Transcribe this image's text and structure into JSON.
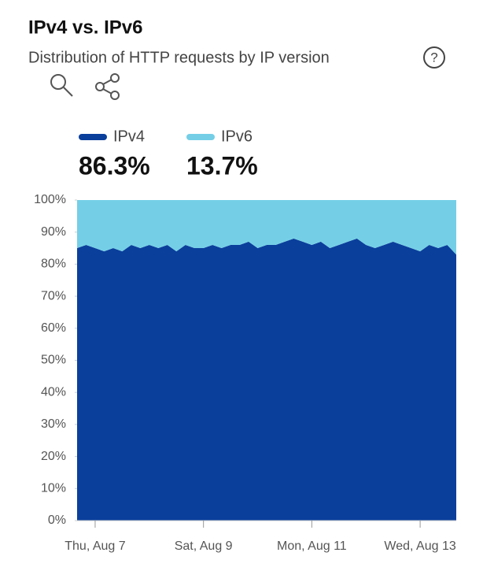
{
  "header": {
    "title": "IPv4 vs. IPv6",
    "subtitle": "Distribution of HTTP requests by IP version",
    "help": "?"
  },
  "chart_data": {
    "type": "stacked-area",
    "categories": [
      null,
      null,
      "Thu, Aug 7",
      null,
      null,
      null,
      null,
      null,
      null,
      null,
      null,
      null,
      null,
      null,
      "Sat, Aug 9",
      null,
      null,
      null,
      null,
      null,
      null,
      null,
      null,
      null,
      null,
      null,
      "Mon, Aug 11",
      null,
      null,
      null,
      null,
      null,
      null,
      null,
      null,
      null,
      null,
      null,
      "Wed, Aug 13",
      null,
      null,
      null,
      null
    ],
    "series": [
      {
        "name": "IPv4",
        "color": "#0a3f9c",
        "total": 86.3,
        "total_label": "86.3%",
        "values": [
          85,
          86,
          85,
          84,
          85,
          84,
          86,
          85,
          86,
          85,
          86,
          84,
          86,
          85,
          85,
          86,
          85,
          86,
          86,
          87,
          85,
          86,
          86,
          87,
          88,
          87,
          86,
          87,
          85,
          86,
          87,
          88,
          86,
          85,
          86,
          87,
          86,
          85,
          84,
          86,
          85,
          86,
          83
        ]
      },
      {
        "name": "IPv6",
        "color": "#74cfe6",
        "total": 13.7,
        "total_label": "13.7%",
        "values": [
          15,
          14,
          15,
          16,
          15,
          16,
          14,
          15,
          14,
          15,
          14,
          16,
          14,
          15,
          15,
          14,
          15,
          14,
          14,
          13,
          15,
          14,
          14,
          13,
          12,
          13,
          14,
          13,
          15,
          14,
          13,
          12,
          14,
          15,
          14,
          13,
          14,
          15,
          16,
          14,
          15,
          14,
          17
        ]
      }
    ],
    "ylim": [
      0,
      100
    ],
    "yticks": [
      {
        "value": 0,
        "label": "0%"
      },
      {
        "value": 10,
        "label": "10%"
      },
      {
        "value": 20,
        "label": "20%"
      },
      {
        "value": 30,
        "label": "30%"
      },
      {
        "value": 40,
        "label": "40%"
      },
      {
        "value": 50,
        "label": "50%"
      },
      {
        "value": 60,
        "label": "60%"
      },
      {
        "value": 70,
        "label": "70%"
      },
      {
        "value": 80,
        "label": "80%"
      },
      {
        "value": 90,
        "label": "90%"
      },
      {
        "value": 100,
        "label": "100%"
      }
    ]
  }
}
